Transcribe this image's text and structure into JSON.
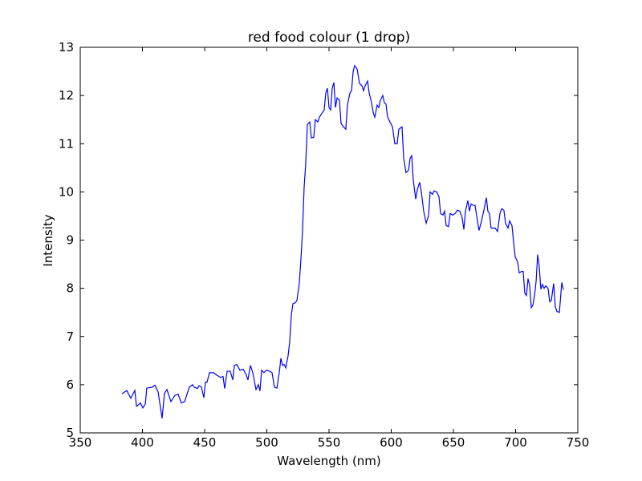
{
  "chart_data": {
    "type": "line",
    "title": "red food colour (1 drop)",
    "x_label": "Wavelength (nm)",
    "y_label": "Intensity",
    "xlim": [
      350,
      750
    ],
    "xticks": [
      350,
      400,
      450,
      500,
      550,
      600,
      650,
      700,
      750
    ],
    "ylim": [
      5,
      13
    ],
    "yticks": [
      5,
      6,
      7,
      8,
      9,
      10,
      11,
      12,
      13
    ],
    "color": "#0000ff",
    "x": [
      383.5,
      387.4,
      390.6,
      393.9,
      395.2,
      398.4,
      400.3,
      402.3,
      403.5,
      408.1,
      410.0,
      412.6,
      415.8,
      417.7,
      419.7,
      422.9,
      426.1,
      428.7,
      431.3,
      433.9,
      437.7,
      440.3,
      441.6,
      444.2,
      445.5,
      447.4,
      449.4,
      450.6,
      451.9,
      453.9,
      457.1,
      459.7,
      462.9,
      464.8,
      466.1,
      468.1,
      470.6,
      472.6,
      473.9,
      475.8,
      478.4,
      481.0,
      483.5,
      484.8,
      486.8,
      488.7,
      491.3,
      493.2,
      494.5,
      495.8,
      497.7,
      499.7,
      502.3,
      504.2,
      506.1,
      508.1,
      510.0,
      511.3,
      512.6,
      513.9,
      515.2,
      517.1,
      518.4,
      519.7,
      521.0,
      522.9,
      524.2,
      526.1,
      527.4,
      528.7,
      530.0,
      531.3,
      532.6,
      534.5,
      535.8,
      537.7,
      539.0,
      541.0,
      542.3,
      543.5,
      544.8,
      546.1,
      547.4,
      548.7,
      550.0,
      551.3,
      552.6,
      553.9,
      555.2,
      556.5,
      558.4,
      559.7,
      561.6,
      563.5,
      564.8,
      566.8,
      568.1,
      569.4,
      570.6,
      572.6,
      574.5,
      576.5,
      577.7,
      579.0,
      581.0,
      582.3,
      584.2,
      585.5,
      586.8,
      588.7,
      590.0,
      591.3,
      593.2,
      594.5,
      595.8,
      597.1,
      599.0,
      601.0,
      602.9,
      604.8,
      606.1,
      608.7,
      610.0,
      611.9,
      613.9,
      615.2,
      616.5,
      617.7,
      619.7,
      621.0,
      622.9,
      624.2,
      626.1,
      628.1,
      630.0,
      631.3,
      633.2,
      634.5,
      636.5,
      638.4,
      639.7,
      641.6,
      642.9,
      644.2,
      646.1,
      647.4,
      649.4,
      651.3,
      653.2,
      655.2,
      657.1,
      658.4,
      659.7,
      661.6,
      662.9,
      664.2,
      666.1,
      667.4,
      668.7,
      670.6,
      672.6,
      674.5,
      676.5,
      677.7,
      679.0,
      680.3,
      682.3,
      683.5,
      685.5,
      687.4,
      688.7,
      690.6,
      691.9,
      693.9,
      695.2,
      697.1,
      698.4,
      699.7,
      701.6,
      702.9,
      704.8,
      706.1,
      707.4,
      708.7,
      710.0,
      711.3,
      712.6,
      713.9,
      715.2,
      716.5,
      717.7,
      719.0,
      720.3,
      721.6,
      722.9,
      724.2,
      726.1,
      727.4,
      728.7,
      730.6,
      731.9,
      733.2,
      735.2,
      737.1,
      738.4
    ],
    "values": [
      5.81,
      5.88,
      5.72,
      5.88,
      5.55,
      5.62,
      5.52,
      5.6,
      5.93,
      5.95,
      5.99,
      5.85,
      5.3,
      5.82,
      5.9,
      5.65,
      5.78,
      5.8,
      5.62,
      5.65,
      5.95,
      6.0,
      5.95,
      5.92,
      5.98,
      5.95,
      5.73,
      6.05,
      6.05,
      6.25,
      6.25,
      6.2,
      6.15,
      6.17,
      5.92,
      6.28,
      6.28,
      6.1,
      6.4,
      6.42,
      6.3,
      6.32,
      6.2,
      6.1,
      6.4,
      6.25,
      5.9,
      6.0,
      5.87,
      6.3,
      6.25,
      6.3,
      6.28,
      6.25,
      5.95,
      5.93,
      6.25,
      6.55,
      6.4,
      6.42,
      6.35,
      6.6,
      6.9,
      7.45,
      7.68,
      7.7,
      7.75,
      8.1,
      8.6,
      9.2,
      10.1,
      10.6,
      11.4,
      11.45,
      11.12,
      11.13,
      11.5,
      11.45,
      11.55,
      11.6,
      11.65,
      11.7,
      12.05,
      12.15,
      11.75,
      11.7,
      12.15,
      12.27,
      11.75,
      11.95,
      11.9,
      11.42,
      11.35,
      11.3,
      11.8,
      12.05,
      12.1,
      12.5,
      12.62,
      12.55,
      12.25,
      12.2,
      12.1,
      12.2,
      12.3,
      12.05,
      11.85,
      11.65,
      11.55,
      11.8,
      11.75,
      11.9,
      12.0,
      11.85,
      11.82,
      11.55,
      11.45,
      11.35,
      11.0,
      11.0,
      11.3,
      11.35,
      10.7,
      10.4,
      10.45,
      10.7,
      10.75,
      10.25,
      9.85,
      10.05,
      10.2,
      10.0,
      9.6,
      9.35,
      9.5,
      10.0,
      9.95,
      10.02,
      10.0,
      9.9,
      9.55,
      9.52,
      9.6,
      9.3,
      9.28,
      9.55,
      9.52,
      9.55,
      9.62,
      9.6,
      9.45,
      9.22,
      9.6,
      9.82,
      9.6,
      9.75,
      9.72,
      9.72,
      9.5,
      9.2,
      9.4,
      9.62,
      9.88,
      9.6,
      9.55,
      9.25,
      9.25,
      9.25,
      9.18,
      9.55,
      9.65,
      9.62,
      9.35,
      9.25,
      9.4,
      9.3,
      8.95,
      8.65,
      8.55,
      8.32,
      8.35,
      8.35,
      7.9,
      7.85,
      8.2,
      8.05,
      7.6,
      7.65,
      7.85,
      8.15,
      8.7,
      8.45,
      7.98,
      8.08,
      8.0,
      8.05,
      8.0,
      7.72,
      7.75,
      8.1,
      7.62,
      7.52,
      7.5,
      8.12,
      7.97
    ]
  }
}
